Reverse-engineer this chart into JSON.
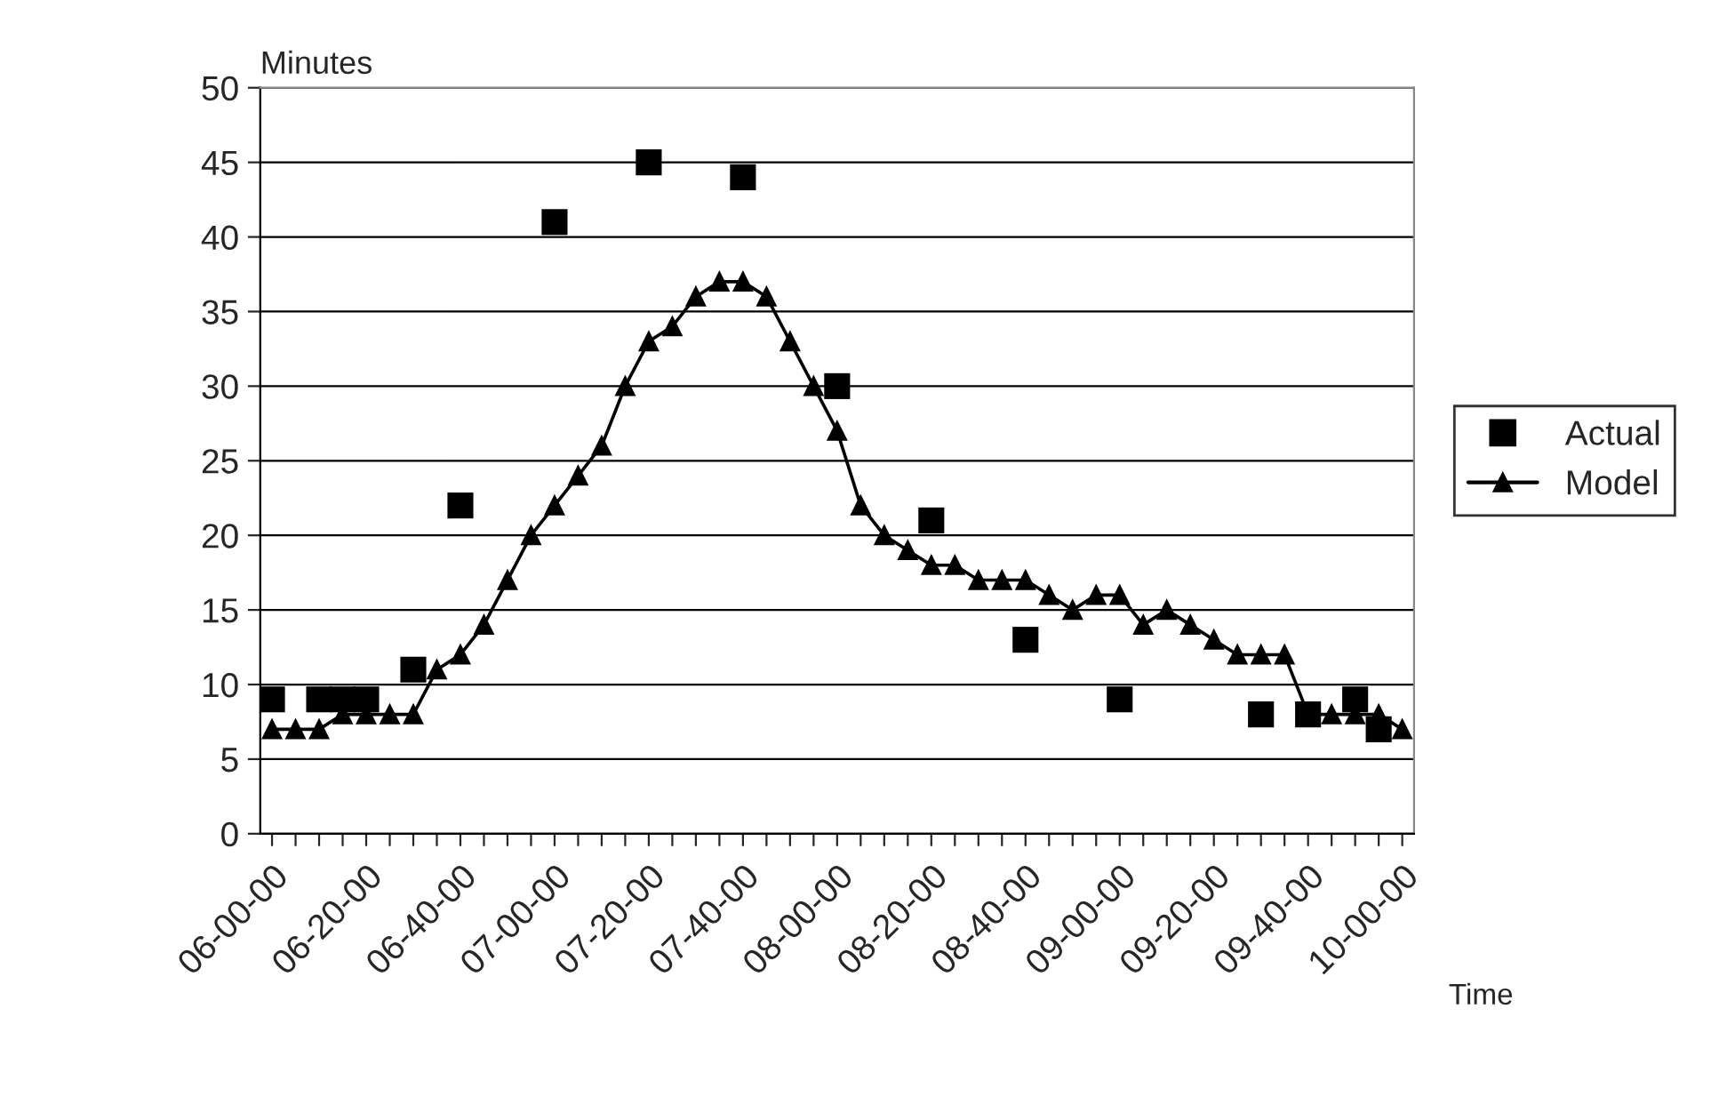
{
  "chart_data": {
    "type": "scatter",
    "ylabel": "Minutes",
    "xlabel": "Time",
    "categories": [
      "06-00-00",
      null,
      null,
      null,
      "06-20-00",
      null,
      null,
      null,
      "06-40-00",
      null,
      null,
      null,
      "07-00-00",
      null,
      null,
      null,
      "07-20-00",
      null,
      null,
      null,
      "07-40-00",
      null,
      null,
      null,
      "08-00-00",
      null,
      null,
      null,
      "08-20-00",
      null,
      null,
      null,
      "08-40-00",
      null,
      null,
      null,
      "09-00-00",
      null,
      null,
      null,
      "09-20-00",
      null,
      null,
      null,
      "09-40-00",
      null,
      null,
      null,
      "10-00-00"
    ],
    "series": [
      {
        "name": "Actual",
        "marker": "square",
        "color": "#000000",
        "values": [
          9,
          null,
          9,
          9,
          9,
          null,
          11,
          null,
          22,
          null,
          null,
          null,
          41,
          null,
          null,
          null,
          45,
          null,
          null,
          null,
          44,
          null,
          null,
          null,
          30,
          null,
          null,
          null,
          21,
          null,
          null,
          null,
          13,
          null,
          null,
          null,
          9,
          null,
          null,
          null,
          null,
          null,
          8,
          null,
          8,
          null,
          9,
          7,
          null
        ]
      },
      {
        "name": "Model",
        "type": "line",
        "marker": "triangle",
        "line_style": "solid",
        "color": "#000000",
        "values": [
          7,
          7,
          7,
          8,
          8,
          8,
          8,
          11,
          12,
          14,
          17,
          20,
          22,
          24,
          26,
          30,
          33,
          34,
          36,
          37,
          37,
          36,
          33,
          30,
          27,
          22,
          20,
          19,
          18,
          18,
          17,
          17,
          17,
          16,
          15,
          16,
          16,
          14,
          15,
          14,
          13,
          12,
          12,
          12,
          8,
          8,
          8,
          8,
          7
        ]
      }
    ],
    "ylim": [
      0,
      50
    ],
    "yticks": [
      0,
      5,
      10,
      15,
      20,
      25,
      30,
      35,
      40,
      45,
      50
    ],
    "grid": "y",
    "legend": "right"
  }
}
